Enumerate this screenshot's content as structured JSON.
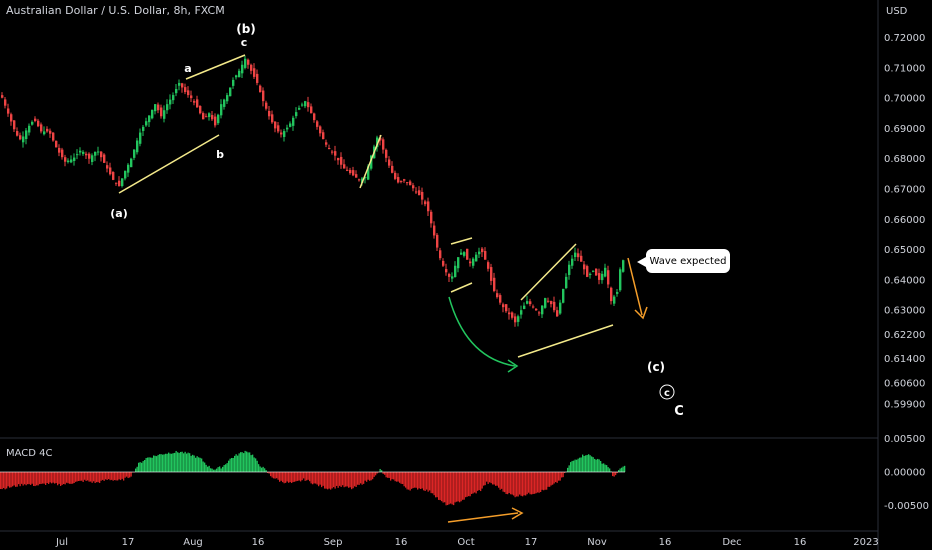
{
  "chart_data": [
    {
      "type": "candlestick",
      "title": "Australian Dollar / U.S. Dollar, 8h, FXCM",
      "currency": "USD",
      "y_ticks": [
        "0.72000",
        "0.71000",
        "0.70000",
        "0.69000",
        "0.68000",
        "0.67000",
        "0.66000",
        "0.65000",
        "0.64000",
        "0.63000",
        "0.62200",
        "0.61400",
        "0.60600",
        "0.59900"
      ],
      "y_tick_values": [
        0.72,
        0.71,
        0.7,
        0.69,
        0.68,
        0.67,
        0.66,
        0.65,
        0.64,
        0.63,
        0.622,
        0.614,
        0.606,
        0.599
      ],
      "x_tick_labels": [
        "Jul",
        "17",
        "Aug",
        "16",
        "Sep",
        "16",
        "Oct",
        "17",
        "Nov",
        "16",
        "Dec",
        "16",
        "2023"
      ],
      "price_path": [
        [
          0,
          0.701
        ],
        [
          8,
          0.694
        ],
        [
          15,
          0.688
        ],
        [
          20,
          0.686
        ],
        [
          26,
          0.69
        ],
        [
          33,
          0.693
        ],
        [
          40,
          0.689
        ],
        [
          48,
          0.689
        ],
        [
          56,
          0.683
        ],
        [
          64,
          0.679
        ],
        [
          72,
          0.68
        ],
        [
          80,
          0.683
        ],
        [
          88,
          0.68
        ],
        [
          96,
          0.683
        ],
        [
          104,
          0.678
        ],
        [
          112,
          0.673
        ],
        [
          118,
          0.671
        ],
        [
          124,
          0.676
        ],
        [
          130,
          0.68
        ],
        [
          138,
          0.688
        ],
        [
          146,
          0.693
        ],
        [
          154,
          0.698
        ],
        [
          160,
          0.694
        ],
        [
          166,
          0.698
        ],
        [
          172,
          0.701
        ],
        [
          178,
          0.705
        ],
        [
          184,
          0.702
        ],
        [
          190,
          0.7
        ],
        [
          196,
          0.697
        ],
        [
          202,
          0.693
        ],
        [
          208,
          0.695
        ],
        [
          214,
          0.691
        ],
        [
          220,
          0.698
        ],
        [
          226,
          0.701
        ],
        [
          232,
          0.706
        ],
        [
          238,
          0.709
        ],
        [
          244,
          0.713
        ],
        [
          250,
          0.709
        ],
        [
          256,
          0.705
        ],
        [
          262,
          0.699
        ],
        [
          268,
          0.694
        ],
        [
          274,
          0.69
        ],
        [
          280,
          0.688
        ],
        [
          288,
          0.691
        ],
        [
          296,
          0.696
        ],
        [
          304,
          0.699
        ],
        [
          310,
          0.695
        ],
        [
          318,
          0.689
        ],
        [
          326,
          0.684
        ],
        [
          334,
          0.681
        ],
        [
          342,
          0.677
        ],
        [
          350,
          0.675
        ],
        [
          358,
          0.673
        ],
        [
          364,
          0.674
        ],
        [
          370,
          0.681
        ],
        [
          377,
          0.688
        ],
        [
          383,
          0.682
        ],
        [
          390,
          0.676
        ],
        [
          396,
          0.672
        ],
        [
          402,
          0.673
        ],
        [
          410,
          0.671
        ],
        [
          418,
          0.668
        ],
        [
          426,
          0.664
        ],
        [
          432,
          0.656
        ],
        [
          438,
          0.648
        ],
        [
          444,
          0.643
        ],
        [
          450,
          0.64
        ],
        [
          456,
          0.647
        ],
        [
          462,
          0.65
        ],
        [
          468,
          0.645
        ],
        [
          474,
          0.648
        ],
        [
          480,
          0.65
        ],
        [
          486,
          0.645
        ],
        [
          492,
          0.637
        ],
        [
          498,
          0.633
        ],
        [
          504,
          0.63
        ],
        [
          510,
          0.628
        ],
        [
          514,
          0.626
        ],
        [
          520,
          0.63
        ],
        [
          526,
          0.633
        ],
        [
          532,
          0.631
        ],
        [
          538,
          0.629
        ],
        [
          544,
          0.634
        ],
        [
          550,
          0.632
        ],
        [
          556,
          0.628
        ],
        [
          562,
          0.637
        ],
        [
          568,
          0.645
        ],
        [
          574,
          0.649
        ],
        [
          580,
          0.646
        ],
        [
          586,
          0.641
        ],
        [
          592,
          0.643
        ],
        [
          598,
          0.64
        ],
        [
          604,
          0.644
        ],
        [
          610,
          0.633
        ],
        [
          616,
          0.636
        ],
        [
          620,
          0.646
        ],
        [
          624,
          0.647
        ]
      ],
      "annotations": [
        "(a)",
        "a",
        "b",
        "c",
        "(b)",
        "(c)",
        "c",
        "C"
      ],
      "callout_text": "Wave expected",
      "colors": {
        "up": "#22c55e",
        "down": "#ef4444",
        "trendline": "#f3e98a",
        "arrow_green": "#22c55e",
        "arrow_orange": "#f59e2a"
      }
    },
    {
      "type": "bar",
      "title": "MACD 4C",
      "y_ticks": [
        "0.00500",
        "0.00000",
        "-0.00500"
      ],
      "y_tick_values": [
        0.005,
        0.0,
        -0.005
      ],
      "histogram_path": [
        [
          0,
          -0.0025
        ],
        [
          12,
          -0.0022
        ],
        [
          24,
          -0.0018
        ],
        [
          36,
          -0.002
        ],
        [
          48,
          -0.0017
        ],
        [
          60,
          -0.0019
        ],
        [
          72,
          -0.0016
        ],
        [
          84,
          -0.0013
        ],
        [
          96,
          -0.0016
        ],
        [
          108,
          -0.0011
        ],
        [
          120,
          -0.0013
        ],
        [
          130,
          -0.0006
        ],
        [
          138,
          0.0012
        ],
        [
          146,
          0.0021
        ],
        [
          154,
          0.0024
        ],
        [
          162,
          0.0027
        ],
        [
          170,
          0.0029
        ],
        [
          180,
          0.003
        ],
        [
          190,
          0.0026
        ],
        [
          200,
          0.002
        ],
        [
          208,
          0.0008
        ],
        [
          214,
          0.0004
        ],
        [
          222,
          0.0008
        ],
        [
          230,
          0.002
        ],
        [
          238,
          0.0027
        ],
        [
          246,
          0.0032
        ],
        [
          252,
          0.0025
        ],
        [
          258,
          0.0012
        ],
        [
          264,
          0.0004
        ],
        [
          270,
          -0.0006
        ],
        [
          280,
          -0.0014
        ],
        [
          292,
          -0.0017
        ],
        [
          304,
          -0.0011
        ],
        [
          316,
          -0.0019
        ],
        [
          328,
          -0.0025
        ],
        [
          340,
          -0.0021
        ],
        [
          352,
          -0.0025
        ],
        [
          364,
          -0.0015
        ],
        [
          374,
          -0.0008
        ],
        [
          380,
          0.0004
        ],
        [
          386,
          -0.001
        ],
        [
          396,
          -0.0013
        ],
        [
          408,
          -0.0026
        ],
        [
          420,
          -0.0024
        ],
        [
          432,
          -0.0031
        ],
        [
          440,
          -0.0044
        ],
        [
          448,
          -0.005
        ],
        [
          456,
          -0.0046
        ],
        [
          464,
          -0.004
        ],
        [
          472,
          -0.0033
        ],
        [
          480,
          -0.0027
        ],
        [
          486,
          -0.0016
        ],
        [
          494,
          -0.0019
        ],
        [
          504,
          -0.003
        ],
        [
          514,
          -0.0036
        ],
        [
          524,
          -0.0034
        ],
        [
          534,
          -0.0031
        ],
        [
          544,
          -0.0027
        ],
        [
          554,
          -0.0018
        ],
        [
          562,
          -0.0009
        ],
        [
          570,
          0.0014
        ],
        [
          578,
          0.0022
        ],
        [
          586,
          0.0027
        ],
        [
          594,
          0.0021
        ],
        [
          602,
          0.0014
        ],
        [
          608,
          0.0008
        ],
        [
          612,
          -0.0006
        ],
        [
          616,
          -0.0004
        ],
        [
          620,
          0.0006
        ],
        [
          624,
          0.0008
        ]
      ],
      "colors": {
        "positive": "#22c55e",
        "negative": "#dc2626"
      }
    }
  ]
}
